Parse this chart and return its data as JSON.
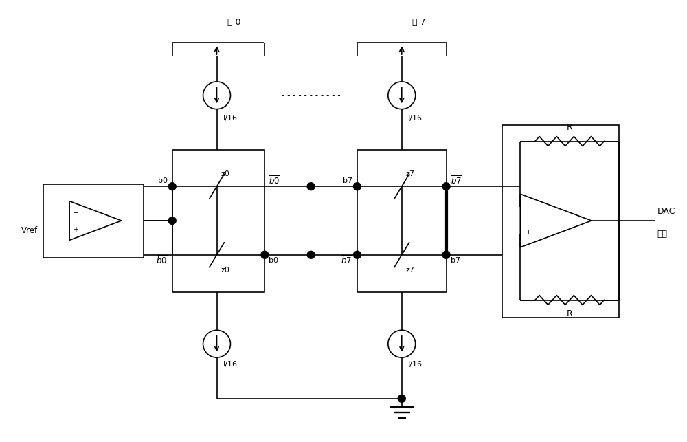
{
  "bg_color": "#ffffff",
  "fig_width": 10.0,
  "fig_height": 6.43,
  "dpi": 100,
  "labels": {
    "wei_0": "位 0",
    "wei_7": "位 7",
    "I16": "I/16",
    "b0": "b0",
    "z0": "z0",
    "b0bar": "$\\overline{b0}$",
    "b7": "b7",
    "z7": "z7",
    "b7bar": "$\\overline{b7}$",
    "Vref": "Vref",
    "R": "R",
    "DAC": "DAC",
    "output": "输出"
  }
}
